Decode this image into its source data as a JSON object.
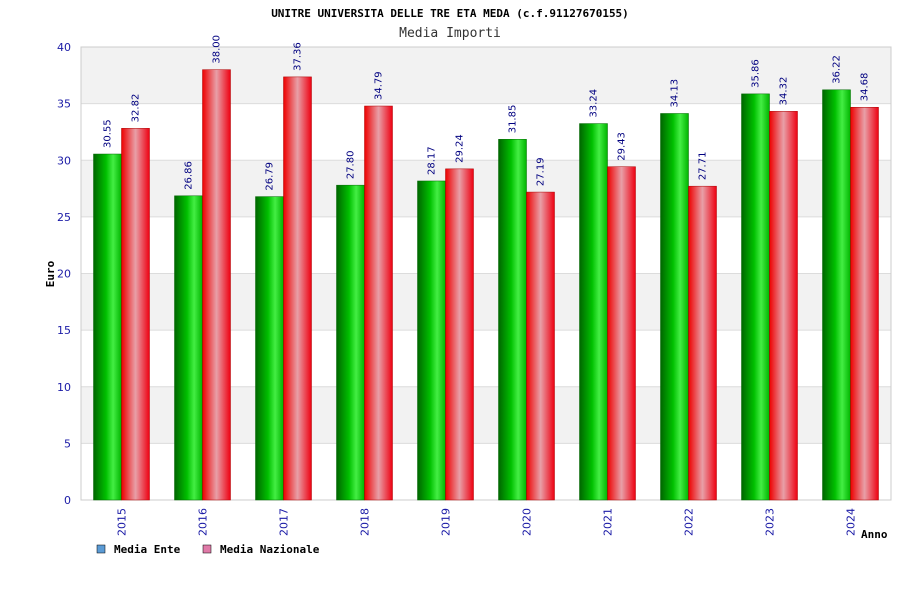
{
  "chart_data": {
    "type": "bar",
    "title": "UNITRE UNIVERSITA DELLE TRE ETA MEDA (c.f.91127670155)",
    "subtitle": "Media Importi",
    "xlabel": "Anno",
    "ylabel": "Euro",
    "ylim": [
      0,
      40
    ],
    "yticks": [
      0,
      5,
      10,
      15,
      20,
      25,
      30,
      35,
      40
    ],
    "grid": true,
    "legend_position": "bottom-left",
    "categories": [
      "2015",
      "2016",
      "2017",
      "2018",
      "2019",
      "2020",
      "2021",
      "2022",
      "2023",
      "2024"
    ],
    "series": [
      {
        "name": "Media Ente",
        "color": "#00aa00",
        "legend_color": "#5b9bd5",
        "values": [
          30.55,
          26.86,
          26.79,
          27.8,
          28.17,
          31.85,
          33.24,
          34.13,
          35.86,
          36.22
        ],
        "labels": [
          "30.55",
          "26.86",
          "26.79",
          "27.80",
          "28.17",
          "31.85",
          "33.24",
          "34.13",
          "35.86",
          "36.22"
        ]
      },
      {
        "name": "Media Nazionale",
        "color": "#ee1122",
        "legend_color": "#e07aa8",
        "values": [
          32.82,
          38.0,
          37.36,
          34.79,
          29.24,
          27.19,
          29.43,
          27.71,
          34.32,
          34.68
        ],
        "labels": [
          "32.82",
          "38.00",
          "37.36",
          "34.79",
          "29.24",
          "27.19",
          "29.43",
          "27.71",
          "34.32",
          "34.68"
        ]
      }
    ]
  }
}
